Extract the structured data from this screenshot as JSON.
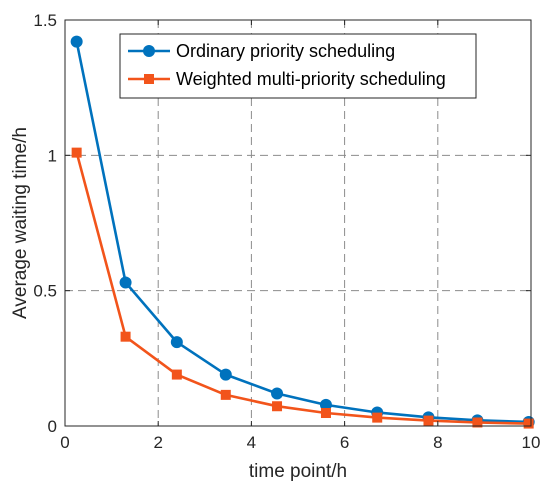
{
  "chart_data": {
    "type": "line",
    "xlabel": "time point/h",
    "ylabel": "Average waiting time/h",
    "xlim": [
      0,
      10
    ],
    "ylim": [
      0,
      1.5
    ],
    "xticks": [
      0,
      2,
      4,
      6,
      8,
      10
    ],
    "yticks": [
      0,
      0.5,
      1,
      1.5
    ],
    "xtick_labels": [
      "0",
      "2",
      "4",
      "6",
      "8",
      "10"
    ],
    "ytick_labels": [
      "0",
      "0.5",
      "1",
      "1.5"
    ],
    "grid": true,
    "legend_position": "top-right",
    "x": [
      0.25,
      1.3,
      2.4,
      3.45,
      4.55,
      5.6,
      6.7,
      7.8,
      8.85,
      9.95
    ],
    "series": [
      {
        "name": "Ordinary priority scheduling",
        "color": "#0072BD",
        "marker": "circle",
        "values": [
          1.42,
          0.53,
          0.31,
          0.19,
          0.12,
          0.078,
          0.05,
          0.032,
          0.021,
          0.015
        ]
      },
      {
        "name": "Weighted multi-priority scheduling",
        "color": "#F2541B",
        "marker": "square",
        "values": [
          1.01,
          0.33,
          0.19,
          0.115,
          0.073,
          0.048,
          0.031,
          0.02,
          0.013,
          0.009
        ]
      }
    ]
  }
}
